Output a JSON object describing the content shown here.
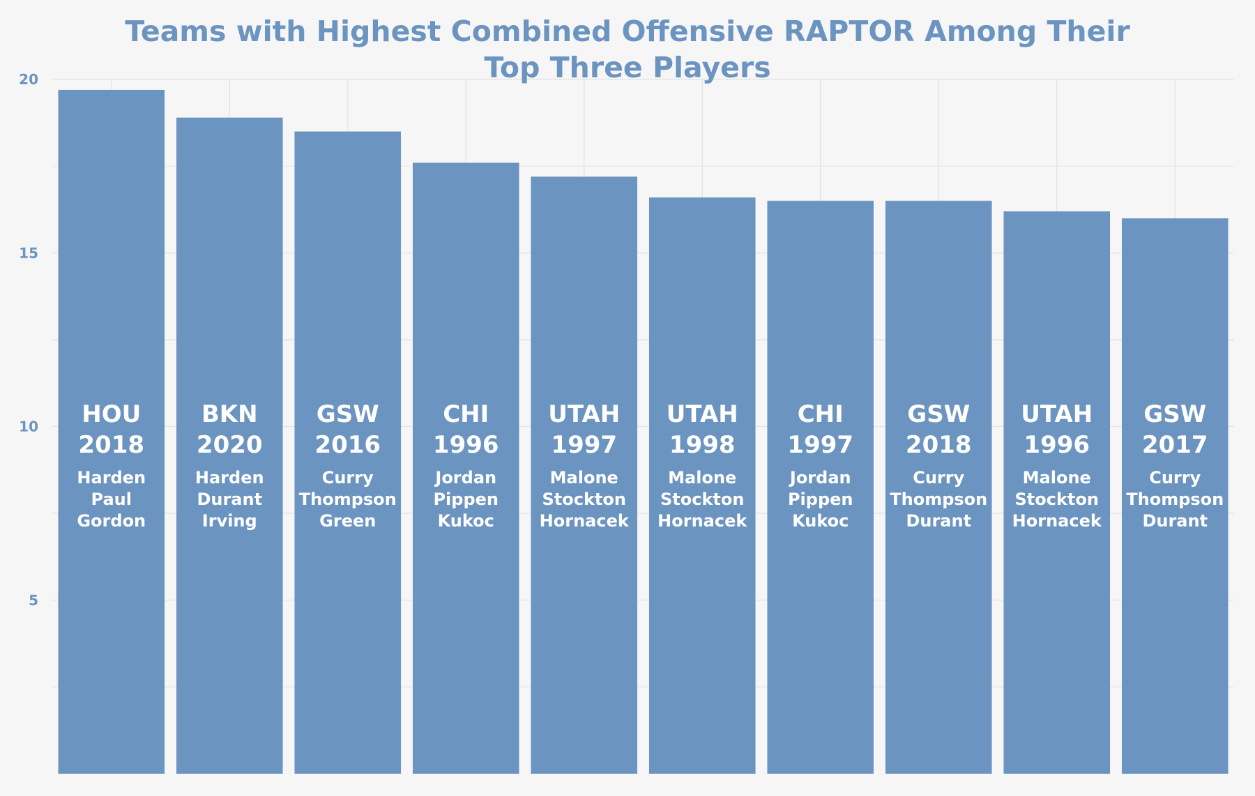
{
  "colors": {
    "background": "#f6f6f6",
    "bar": "#6b94c0",
    "title": "#6b94c0",
    "grid": "#e3e3e3",
    "bar_text": "#ffffff"
  },
  "chart_data": {
    "type": "bar",
    "title_lines": [
      "Teams with Highest Combined Offensive RAPTOR Among Their",
      "Top Three Players"
    ],
    "xlabel": "",
    "ylabel": "",
    "ylim": [
      0,
      20
    ],
    "yticks": [
      5,
      10,
      15,
      20
    ],
    "grid": true,
    "legend": "none",
    "categories": [
      {
        "team": "HOU",
        "year": "2018",
        "players": [
          "Harden",
          "Paul",
          "Gordon"
        ]
      },
      {
        "team": "BKN",
        "year": "2020",
        "players": [
          "Harden",
          "Durant",
          "Irving"
        ]
      },
      {
        "team": "GSW",
        "year": "2016",
        "players": [
          "Curry",
          "Thompson",
          "Green"
        ]
      },
      {
        "team": "CHI",
        "year": "1996",
        "players": [
          "Jordan",
          "Pippen",
          "Kukoc"
        ]
      },
      {
        "team": "UTAH",
        "year": "1997",
        "players": [
          "Malone",
          "Stockton",
          "Hornacek"
        ]
      },
      {
        "team": "UTAH",
        "year": "1998",
        "players": [
          "Malone",
          "Stockton",
          "Hornacek"
        ]
      },
      {
        "team": "CHI",
        "year": "1997",
        "players": [
          "Jordan",
          "Pippen",
          "Kukoc"
        ]
      },
      {
        "team": "GSW",
        "year": "2018",
        "players": [
          "Curry",
          "Thompson",
          "Durant"
        ]
      },
      {
        "team": "UTAH",
        "year": "1996",
        "players": [
          "Malone",
          "Stockton",
          "Hornacek"
        ]
      },
      {
        "team": "GSW",
        "year": "2017",
        "players": [
          "Curry",
          "Thompson",
          "Durant"
        ]
      }
    ],
    "values": [
      19.7,
      18.9,
      18.5,
      17.6,
      17.2,
      16.6,
      16.5,
      16.5,
      16.2,
      16.0
    ]
  }
}
